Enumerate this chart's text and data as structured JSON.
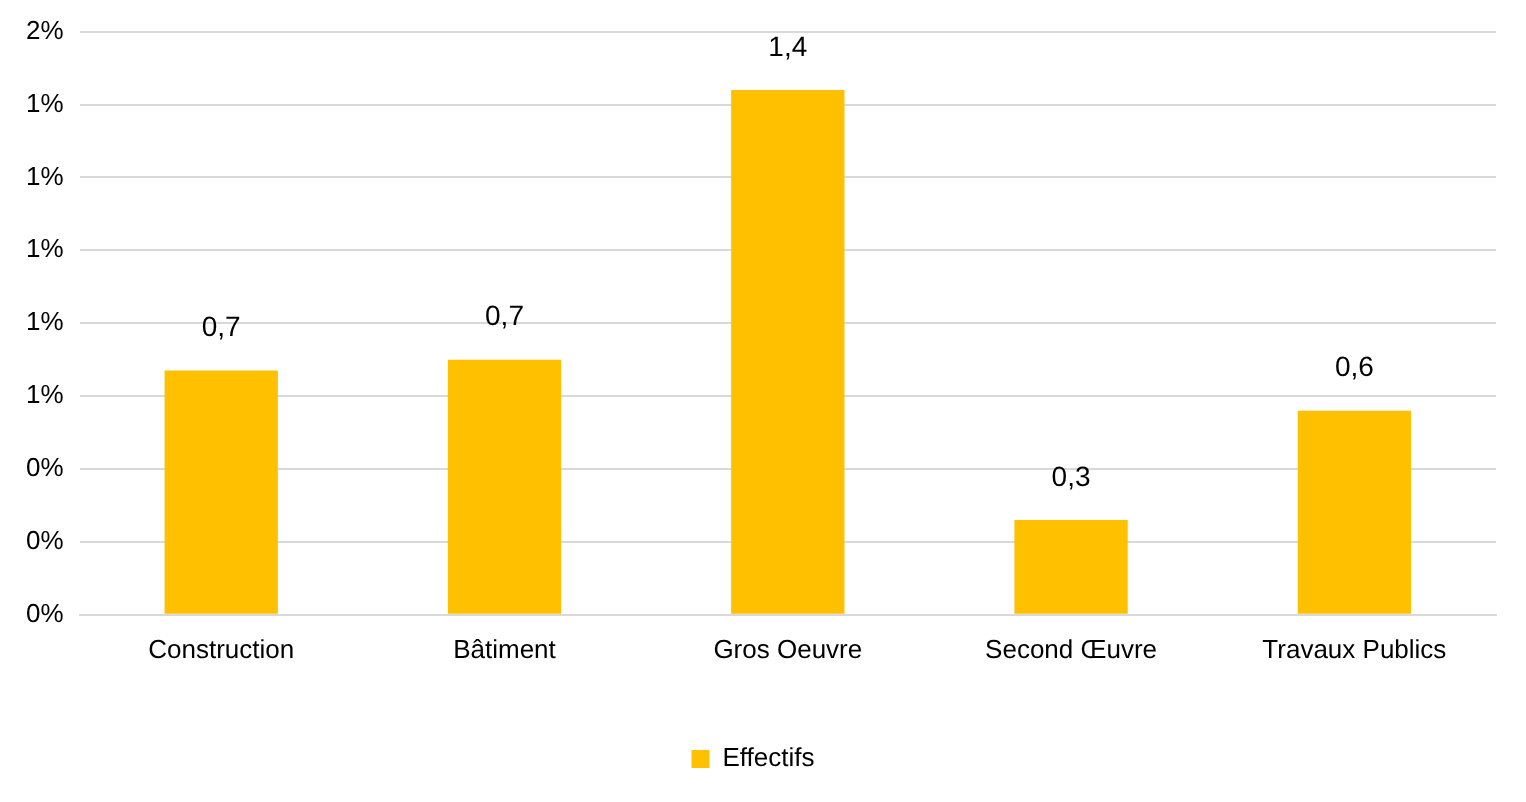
{
  "chart_data": {
    "type": "bar",
    "categories": [
      "Construction",
      "Bâtiment",
      "Gros Oeuvre",
      "Second Œuvre",
      "Travaux Publics"
    ],
    "series": [
      {
        "name": "Effectifs",
        "color": "#ffc000",
        "values": [
          0.67,
          0.7,
          1.44,
          0.26,
          0.56
        ],
        "value_labels": [
          "0,7",
          "0,7",
          "1,4",
          "0,3",
          "0,6"
        ]
      }
    ],
    "ylim": [
      0,
      1.6
    ],
    "yticks": [
      {
        "value": 0,
        "label": "0%"
      },
      {
        "value": 0.2,
        "label": "0%"
      },
      {
        "value": 0.4,
        "label": "0%"
      },
      {
        "value": 0.6,
        "label": "1%"
      },
      {
        "value": 0.8,
        "label": "1%"
      },
      {
        "value": 1.0,
        "label": "1%"
      },
      {
        "value": 1.2,
        "label": "1%"
      },
      {
        "value": 1.4,
        "label": "1%"
      },
      {
        "value": 1.6,
        "label": "2%"
      }
    ],
    "grid": "y",
    "legend": "bottom"
  }
}
